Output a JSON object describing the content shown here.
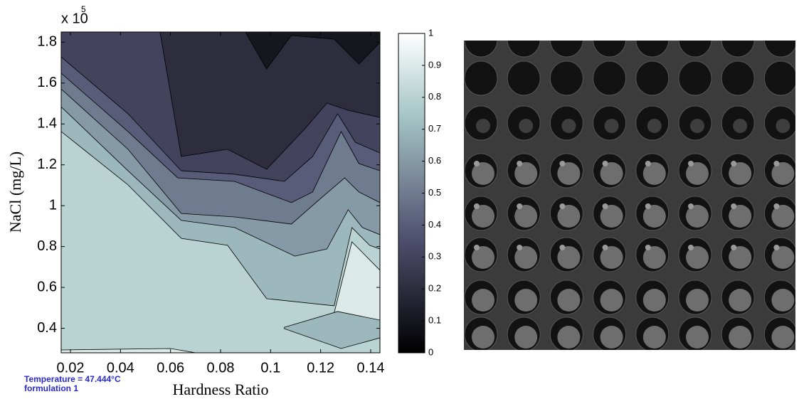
{
  "chart_data": {
    "type": "contourf",
    "xlabel": "Hardness Ratio",
    "ylabel": "NaCl (mg/L)",
    "y_multiplier": {
      "base": "x 10",
      "exponent": "5"
    },
    "annotations": [
      "Temperature = 47.444°C",
      "formulation 1"
    ],
    "colormap": "bone",
    "xlim": [
      0.0163,
      0.1437
    ],
    "ylim": [
      0.28,
      1.85
    ],
    "xticks": [
      0.02,
      0.04,
      0.06,
      0.08,
      0.1,
      0.12,
      0.14
    ],
    "yticks": [
      0.4,
      0.6,
      0.8,
      1,
      1.2,
      1.4,
      1.6,
      1.8
    ],
    "clim": [
      0,
      1
    ],
    "cticks": [
      0,
      0.1,
      0.2,
      0.3,
      0.4,
      0.5,
      0.6,
      0.7,
      0.8,
      0.9,
      1
    ],
    "contours": [
      {
        "level": 0.1,
        "x": [
          0.0163,
          0.1437,
          0.1437,
          0.0163
        ],
        "y": [
          1.85,
          1.85,
          0.28,
          0.28
        ]
      },
      {
        "level": 0,
        "x": [
          0.0899,
          0.0984,
          0.1083,
          0.1254,
          0.1353,
          0.1437,
          0.1437
        ],
        "y": [
          1.85,
          1.669,
          1.833,
          1.815,
          1.693,
          1.798,
          1.85
        ]
      },
      {
        "level": 0.2,
        "x": [
          0.0163,
          0.0558,
          0.0643,
          0.0828,
          0.0984,
          0.114,
          0.1225,
          0.131,
          0.1437,
          0.1437,
          0.0163
        ],
        "y": [
          1.85,
          1.85,
          1.241,
          1.276,
          1.178,
          1.38,
          1.502,
          1.467,
          1.432,
          0.28,
          0.28
        ]
      },
      {
        "level": 0.3,
        "x": [
          0.0163,
          0.043,
          0.0643,
          0.0856,
          0.1055,
          0.1168,
          0.1268,
          0.1339,
          0.1437,
          0.1437,
          0.0163
        ],
        "y": [
          1.728,
          1.45,
          1.171,
          1.154,
          1.119,
          1.241,
          1.45,
          1.31,
          1.258,
          0.28,
          0.28
        ]
      },
      {
        "level": 0.4,
        "x": [
          0.0163,
          0.043,
          0.0629,
          0.0856,
          0.1083,
          0.1168,
          0.1282,
          0.1353,
          0.1437,
          0.1437,
          0.0163
        ],
        "y": [
          1.648,
          1.363,
          1.136,
          1.119,
          1.015,
          1.067,
          1.363,
          1.206,
          1.171,
          0.28,
          0.28
        ]
      },
      {
        "level": 0.5,
        "x": [
          0.0163,
          0.043,
          0.0643,
          0.0856,
          0.1083,
          0.1197,
          0.1296,
          0.1353,
          0.1437,
          0.1437,
          0.0163
        ],
        "y": [
          1.571,
          1.276,
          0.962,
          0.945,
          0.91,
          1.032,
          1.136,
          1.067,
          1.015,
          0.28,
          0.28
        ]
      },
      {
        "level": 0.6,
        "x": [
          0.0163,
          0.043,
          0.0643,
          0.0856,
          0.1097,
          0.1225,
          0.131,
          0.1367,
          0.1437,
          0.1437,
          0.0163
        ],
        "y": [
          1.484,
          1.171,
          0.928,
          0.893,
          0.753,
          0.788,
          0.98,
          0.893,
          0.858,
          0.28,
          0.28
        ]
      },
      {
        "level": 0.7,
        "x": [
          0.0163,
          0.043,
          0.0643,
          0.0828,
          0.0984,
          0.1254,
          0.1325,
          0.1396,
          0.1437,
          0.1437,
          0.0163
        ],
        "y": [
          1.363,
          1.102,
          0.84,
          0.806,
          0.545,
          0.51,
          0.893,
          0.806,
          0.788,
          0.28,
          0.28
        ]
      },
      {
        "level": 0.8,
        "x": [
          0.1254,
          0.1325,
          0.1437,
          0.1437,
          0.1339
        ],
        "y": [
          0.475,
          0.823,
          0.684,
          0.44,
          0.423
        ]
      },
      {
        "level": 0.6,
        "x": [
          0.1055,
          0.1268,
          0.1437,
          0.1437,
          0.1282,
          0.1055
        ],
        "y": [
          0.405,
          0.482,
          0.44,
          0.353,
          0.301,
          0.398
        ]
      },
      {
        "level": 0.8,
        "x": [
          0.0163,
          0.06,
          0.07,
          0.0163
        ],
        "y": [
          0.294,
          0.301,
          0.28,
          0.28
        ]
      }
    ]
  }
}
